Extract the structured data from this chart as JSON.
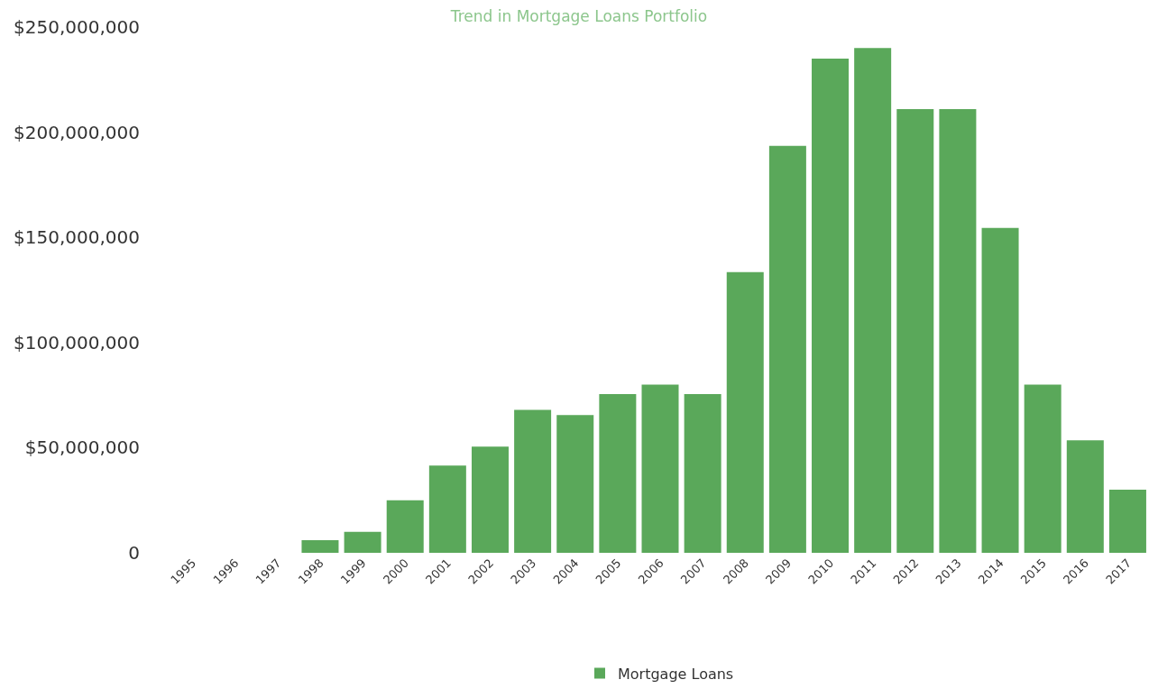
{
  "chart_data": {
    "type": "bar",
    "title": "Trend in Mortgage Loans Portfolio",
    "categories": [
      "1995",
      "1996",
      "1997",
      "1998",
      "1999",
      "2000",
      "2001",
      "2002",
      "2003",
      "2004",
      "2005",
      "2006",
      "2007",
      "2008",
      "2009",
      "2010",
      "2011",
      "2012",
      "2013",
      "2014",
      "2015",
      "2016",
      "2017"
    ],
    "series": [
      {
        "name": "Mortgage Loans",
        "color": "#5aa85a",
        "values": [
          0,
          0,
          0,
          6000000,
          10000000,
          25000000,
          41500000,
          50500000,
          68000000,
          65500000,
          75500000,
          80000000,
          75500000,
          133500000,
          193500000,
          235000000,
          240000000,
          211000000,
          211000000,
          154500000,
          80000000,
          53500000,
          30000000
        ]
      }
    ],
    "ylim": [
      0,
      250000000
    ],
    "yticks": [
      0,
      {
        "value": 50000000,
        "label": "$50,000,000"
      },
      {
        "value": 100000000,
        "label": "$100,000,000"
      },
      {
        "value": 150000000,
        "label": "$150,000,000"
      },
      {
        "value": 200000000,
        "label": "$200,000,000"
      },
      {
        "value": 250000000,
        "label": "$250,000,000"
      }
    ],
    "grid": false,
    "legend": "bottom"
  }
}
